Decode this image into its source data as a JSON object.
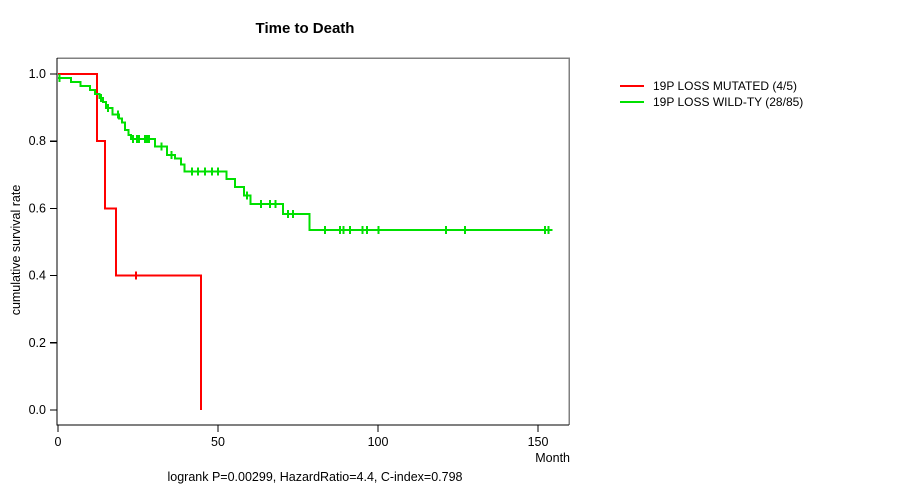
{
  "chart_data": {
    "type": "line",
    "chart_kind": "kaplan_meier_step_curves",
    "title": "Time to Death",
    "xlabel": "Month",
    "ylabel": "cumulative survival rate",
    "x_tick_labels": [
      "0",
      "50",
      "100",
      "150"
    ],
    "x_tick_values": [
      0,
      50,
      100,
      150
    ],
    "y_tick_labels": [
      "1.0",
      "0.8",
      "0.6",
      "0.4",
      "0.2",
      "0.0"
    ],
    "y_tick_values": [
      1.0,
      0.8,
      0.6,
      0.4,
      0.2,
      0.0
    ],
    "xlim": [
      0,
      160
    ],
    "ylim": [
      0.0,
      1.0
    ],
    "grid": false,
    "legend_position": "right-outside",
    "annotation": "logrank P=0.00299, HazardRatio=4.4, C-index=0.798",
    "box_color": "#808080",
    "axis_color": "#000000",
    "series": [
      {
        "name": "19P LOSS MUTATED",
        "label": "19P LOSS MUTATED (4/5)",
        "events": "4/5",
        "color": "#ff0000",
        "steps": [
          [
            0,
            1.0
          ],
          [
            12.2,
            0.8
          ],
          [
            14.7,
            0.6
          ],
          [
            18.1,
            0.4
          ],
          [
            44.7,
            0.0
          ]
        ],
        "end_month": 44.7,
        "censor_marks": [
          [
            24.4,
            0.4
          ]
        ]
      },
      {
        "name": "19P LOSS WILD-TY",
        "label": "19P LOSS WILD-TY (28/85)",
        "events": "28/85",
        "color": "#00e000",
        "steps": [
          [
            0,
            0.988
          ],
          [
            4,
            0.976
          ],
          [
            7,
            0.965
          ],
          [
            10,
            0.953
          ],
          [
            11.5,
            0.941
          ],
          [
            13,
            0.929
          ],
          [
            14,
            0.917
          ],
          [
            15,
            0.899
          ],
          [
            17,
            0.879
          ],
          [
            19,
            0.868
          ],
          [
            20,
            0.856
          ],
          [
            21,
            0.833
          ],
          [
            22,
            0.818
          ],
          [
            22.8,
            0.806
          ],
          [
            30.3,
            0.784
          ],
          [
            34,
            0.759
          ],
          [
            36.6,
            0.748
          ],
          [
            38.5,
            0.731
          ],
          [
            39.5,
            0.71
          ],
          [
            52.7,
            0.688
          ],
          [
            55.3,
            0.663
          ],
          [
            58.1,
            0.638
          ],
          [
            60.2,
            0.613
          ],
          [
            70.3,
            0.583
          ],
          [
            78.6,
            0.536
          ]
        ],
        "end_month": 154.6,
        "censor_marks": [
          [
            0.5,
            0.988
          ],
          [
            13.5,
            0.929
          ],
          [
            15.7,
            0.899
          ],
          [
            18.8,
            0.879
          ],
          [
            23.4,
            0.806
          ],
          [
            24.7,
            0.806
          ],
          [
            25.3,
            0.806
          ],
          [
            27.2,
            0.806
          ],
          [
            27.8,
            0.806
          ],
          [
            28.4,
            0.806
          ],
          [
            32.4,
            0.784
          ],
          [
            35.5,
            0.759
          ],
          [
            41.9,
            0.71
          ],
          [
            43.8,
            0.71
          ],
          [
            45.9,
            0.71
          ],
          [
            48.1,
            0.71
          ],
          [
            50.0,
            0.71
          ],
          [
            59.0,
            0.638
          ],
          [
            63.5,
            0.613
          ],
          [
            66.2,
            0.613
          ],
          [
            68.0,
            0.613
          ],
          [
            71.9,
            0.583
          ],
          [
            73.4,
            0.583
          ],
          [
            83.4,
            0.536
          ],
          [
            88.1,
            0.536
          ],
          [
            89.2,
            0.536
          ],
          [
            91.3,
            0.536
          ],
          [
            95.2,
            0.536
          ],
          [
            96.5,
            0.536
          ],
          [
            100.1,
            0.536
          ],
          [
            121.3,
            0.536
          ],
          [
            127.2,
            0.536
          ],
          [
            152.2,
            0.536
          ],
          [
            153.3,
            0.536
          ]
        ]
      }
    ]
  }
}
